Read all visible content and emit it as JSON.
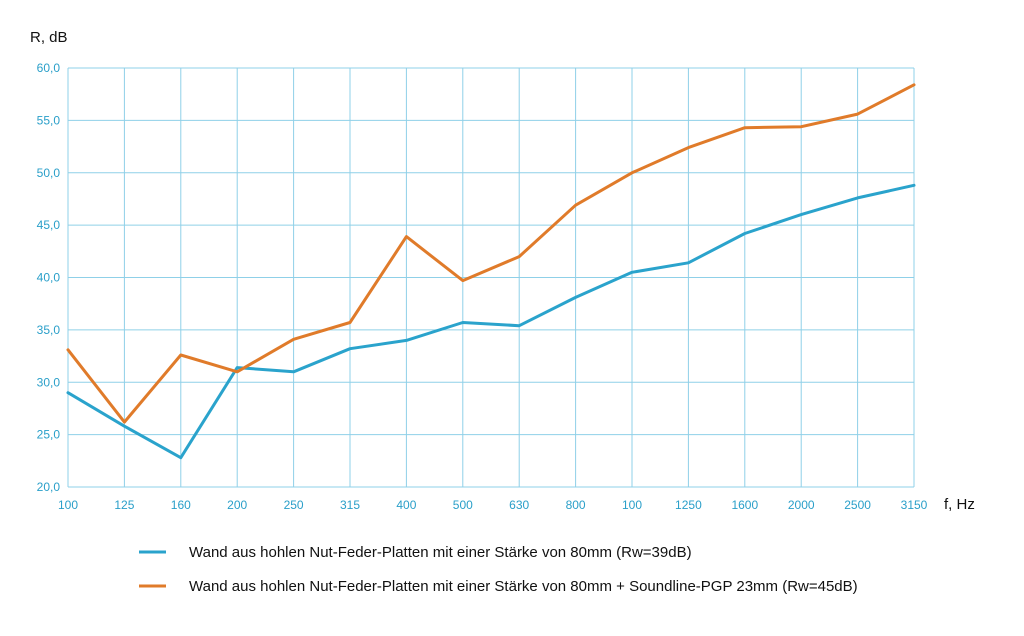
{
  "chart_data": {
    "type": "line",
    "title": "",
    "xlabel": "f, Hz",
    "ylabel": "R, dB",
    "categories": [
      "100",
      "125",
      "160",
      "200",
      "250",
      "315",
      "400",
      "500",
      "630",
      "800",
      "100",
      "1250",
      "1600",
      "2000",
      "2500",
      "3150"
    ],
    "ylim": [
      20,
      60
    ],
    "yticks": [
      "20,0",
      "25,0",
      "30,0",
      "35,0",
      "40,0",
      "45,0",
      "50,0",
      "55,0",
      "60,0"
    ],
    "grid": true,
    "legend_position": "bottom",
    "series": [
      {
        "name": "Wand aus hohlen Nut-Feder-Platten mit einer Stärke von 80mm (Rw=39dB)",
        "color": "#2aa3cc",
        "values": [
          29.0,
          25.8,
          22.8,
          31.4,
          31.0,
          33.2,
          34.0,
          35.7,
          35.4,
          38.1,
          40.5,
          41.4,
          44.2,
          46.0,
          47.6,
          48.8
        ]
      },
      {
        "name": "Wand aus hohlen Nut-Feder-Platten mit einer Stärke von 80mm + Soundline-PGP 23mm (Rw=45dB)",
        "color": "#e07b2a",
        "values": [
          33.1,
          26.2,
          32.6,
          31.0,
          34.1,
          35.7,
          43.9,
          39.7,
          42.0,
          46.9,
          50.0,
          52.4,
          54.3,
          54.4,
          55.6,
          58.4
        ]
      }
    ]
  }
}
